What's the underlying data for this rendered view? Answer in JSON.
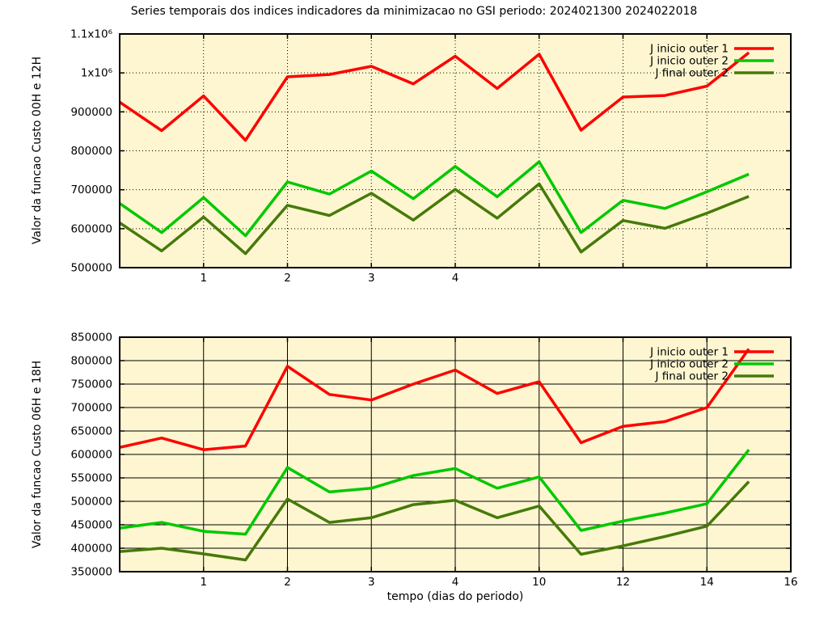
{
  "title": "Series temporais dos indices indicadores da minimizacao no GSI periodo: 2024021300 2024022018",
  "xlabel": "tempo (dias do periodo)",
  "colors": {
    "background": "#ffffff",
    "plot_background": "#fdf6d0",
    "border": "#000000",
    "text": "#000000",
    "series_red": "#ff0000",
    "series_green": "#00c800",
    "series_darkgreen": "#467a0a"
  },
  "chart_data": [
    {
      "type": "line",
      "ylabel": "Valor da funcao Custo 00H e 12H",
      "ylim": [
        500000,
        1100000
      ],
      "xlim": [
        0,
        8
      ],
      "grid": "dotted",
      "legend_position": "top-right",
      "x": [
        0,
        0.5,
        1,
        1.5,
        2,
        2.5,
        3,
        3.5,
        4,
        4.5,
        5,
        5.5,
        6,
        6.5,
        7,
        7.5
      ],
      "xticks": [
        {
          "v": 1,
          "label": "1"
        },
        {
          "v": 2,
          "label": "2"
        },
        {
          "v": 3,
          "label": "3"
        },
        {
          "v": 4,
          "label": "4"
        },
        {
          "v": 5,
          "label": ""
        },
        {
          "v": 6,
          "label": ""
        },
        {
          "v": 7,
          "label": ""
        },
        {
          "v": 8,
          "label": ""
        }
      ],
      "yticks": [
        {
          "v": 500000,
          "label": "500000"
        },
        {
          "v": 600000,
          "label": "600000"
        },
        {
          "v": 700000,
          "label": "700000"
        },
        {
          "v": 800000,
          "label": "800000"
        },
        {
          "v": 900000,
          "label": "900000"
        },
        {
          "v": 1000000,
          "label": "1x10⁶"
        },
        {
          "v": 1100000,
          "label": "1.1x10⁶"
        }
      ],
      "series": [
        {
          "name": "J inicio outer 1",
          "color": "#ff0000",
          "values": [
            925000,
            852000,
            941000,
            827000,
            990000,
            996000,
            1017000,
            972000,
            1043000,
            960000,
            1048000,
            853000,
            938000,
            942000,
            966000,
            1052000
          ]
        },
        {
          "name": "J inicio outer 2",
          "color": "#00c800",
          "values": [
            665000,
            590000,
            680000,
            582000,
            720000,
            689000,
            748000,
            677000,
            760000,
            682000,
            772000,
            590000,
            673000,
            652000,
            695000,
            740000
          ]
        },
        {
          "name": "J  final outer 2",
          "color": "#467a0a",
          "values": [
            615000,
            543000,
            630000,
            536000,
            660000,
            634000,
            691000,
            622000,
            701000,
            627000,
            715000,
            540000,
            621000,
            601000,
            640000,
            683000
          ]
        }
      ]
    },
    {
      "type": "line",
      "ylabel": "Valor da funcao Custo 06H e 18H",
      "ylim": [
        350000,
        850000
      ],
      "xlim": [
        0,
        8
      ],
      "grid": "solid",
      "legend_position": "top-right",
      "x": [
        0,
        0.5,
        1,
        1.5,
        2,
        2.5,
        3,
        3.5,
        4,
        4.5,
        5,
        5.5,
        6,
        6.5,
        7,
        7.5
      ],
      "xticks": [
        {
          "v": 1,
          "label": "1"
        },
        {
          "v": 2,
          "label": "2"
        },
        {
          "v": 3,
          "label": "3"
        },
        {
          "v": 4,
          "label": "4"
        },
        {
          "v": 5,
          "label": "10"
        },
        {
          "v": 6,
          "label": "12"
        },
        {
          "v": 7,
          "label": "14"
        },
        {
          "v": 8,
          "label": "16"
        }
      ],
      "yticks": [
        {
          "v": 350000,
          "label": "350000"
        },
        {
          "v": 400000,
          "label": "400000"
        },
        {
          "v": 450000,
          "label": "450000"
        },
        {
          "v": 500000,
          "label": "500000"
        },
        {
          "v": 550000,
          "label": "550000"
        },
        {
          "v": 600000,
          "label": "600000"
        },
        {
          "v": 650000,
          "label": "650000"
        },
        {
          "v": 700000,
          "label": "700000"
        },
        {
          "v": 750000,
          "label": "750000"
        },
        {
          "v": 800000,
          "label": "800000"
        },
        {
          "v": 850000,
          "label": "850000"
        }
      ],
      "series": [
        {
          "name": "J inicio outer 1",
          "color": "#ff0000",
          "values": [
            615000,
            635000,
            610000,
            618000,
            788000,
            728000,
            716000,
            750000,
            780000,
            730000,
            755000,
            625000,
            660000,
            670000,
            700000,
            825000
          ]
        },
        {
          "name": "J inicio outer 2",
          "color": "#00c800",
          "values": [
            443000,
            455000,
            436000,
            430000,
            572000,
            520000,
            528000,
            555000,
            570000,
            528000,
            552000,
            438000,
            458000,
            475000,
            495000,
            610000
          ]
        },
        {
          "name": "J final  outer 2",
          "color": "#467a0a",
          "values": [
            393000,
            400000,
            388000,
            375000,
            505000,
            455000,
            465000,
            493000,
            502000,
            465000,
            490000,
            387000,
            405000,
            425000,
            447000,
            542000
          ]
        }
      ]
    }
  ]
}
